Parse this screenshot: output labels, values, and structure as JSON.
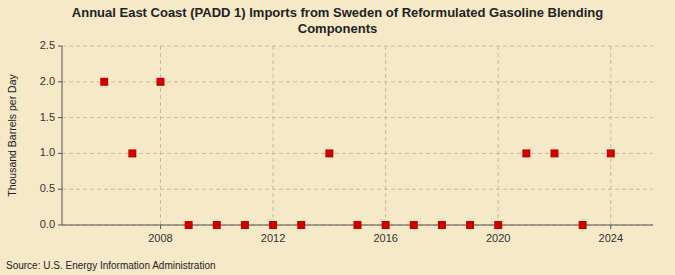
{
  "chart_data": {
    "type": "scatter",
    "title": "Annual East Coast (PADD 1) Imports from Sweden of Reformulated Gasoline Blending\nComponents",
    "ylabel": "Thousand Barrels per Day",
    "source": "Source: U.S. Energy Information Administration",
    "x": [
      2006,
      2007,
      2008,
      2009,
      2010,
      2011,
      2012,
      2013,
      2014,
      2015,
      2016,
      2017,
      2018,
      2019,
      2020,
      2021,
      2022,
      2023,
      2024
    ],
    "values": [
      2.0,
      1.0,
      2.0,
      0.0,
      0.0,
      0.0,
      0.0,
      0.0,
      1.0,
      0.0,
      0.0,
      0.0,
      0.0,
      0.0,
      0.0,
      1.0,
      1.0,
      0.0,
      1.0
    ],
    "color": "#cc0000",
    "marker": "square",
    "xlim": [
      2004.5,
      2025.5
    ],
    "ylim": [
      0.0,
      2.5
    ],
    "xticks": [
      2008,
      2012,
      2016,
      2020,
      2024
    ],
    "yticks": [
      {
        "value": 0.0,
        "label": "0.0"
      },
      0.5,
      {
        "value": 1.0,
        "label": "1.0"
      },
      1.5,
      {
        "value": 2.0,
        "label": "2.0"
      },
      2.5
    ],
    "grid": true
  }
}
